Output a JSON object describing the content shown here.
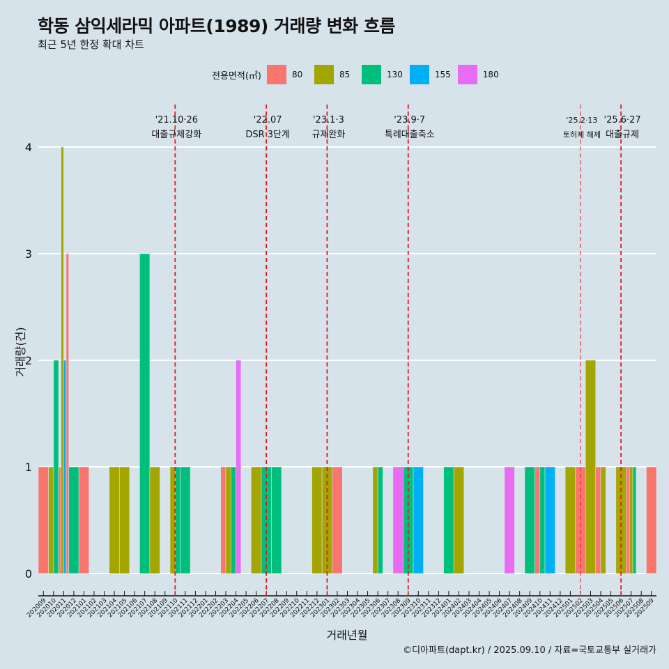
{
  "title": "학동 삼익세라믹 아파트(1989) 거래량 변화 흐름",
  "subtitle": "최근 5년 한정 확대 차트",
  "caption": "©디아파트(dapt.kr) / 2025.09.10 / 자료=국토교통부 실거래가",
  "legend": {
    "title": "전용면적(㎡)",
    "items": [
      {
        "label": "80",
        "color": "#f8766d"
      },
      {
        "label": "85",
        "color": "#a3a500"
      },
      {
        "label": "130",
        "color": "#00bf7d"
      },
      {
        "label": "155",
        "color": "#00b0f6"
      },
      {
        "label": "180",
        "color": "#e76bf3"
      }
    ]
  },
  "chart_data": {
    "type": "bar",
    "xlabel": "거래년월",
    "ylabel": "거래량(건)",
    "ylim": [
      0,
      4
    ],
    "yticks": [
      0,
      1,
      2,
      3,
      4
    ],
    "categories": [
      "202009",
      "202010",
      "202011",
      "202012",
      "202101",
      "202102",
      "202103",
      "202104",
      "202105",
      "202106",
      "202107",
      "202108",
      "202109",
      "202110",
      "202111",
      "202112",
      "202201",
      "202202",
      "202203",
      "202204",
      "202205",
      "202206",
      "202207",
      "202208",
      "202209",
      "202210",
      "202211",
      "202212",
      "202301",
      "202302",
      "202303",
      "202304",
      "202305",
      "202306",
      "202307",
      "202308",
      "202309",
      "202310",
      "202311",
      "202312",
      "202401",
      "202402",
      "202403",
      "202404",
      "202405",
      "202406",
      "202407",
      "202408",
      "202409",
      "202410",
      "202411",
      "202412",
      "202501",
      "202502",
      "202503",
      "202504",
      "202505",
      "202506",
      "202507",
      "202508",
      "202509"
    ],
    "bars": [
      {
        "month": "202009",
        "groups": [
          {
            "area": "80",
            "value": 1
          }
        ]
      },
      {
        "month": "202010",
        "groups": [
          {
            "area": "85",
            "value": 1
          },
          {
            "area": "130",
            "value": 2
          }
        ]
      },
      {
        "month": "202011",
        "groups": [
          {
            "area": "80",
            "value": 1
          },
          {
            "area": "85",
            "value": 4
          },
          {
            "area": "155",
            "value": 2
          },
          {
            "area": "80",
            "value": 3
          }
        ]
      },
      {
        "month": "202012",
        "groups": [
          {
            "area": "130",
            "value": 1
          }
        ]
      },
      {
        "month": "202101",
        "groups": [
          {
            "area": "80",
            "value": 1
          }
        ]
      },
      {
        "month": "202104",
        "groups": [
          {
            "area": "85",
            "value": 1
          }
        ]
      },
      {
        "month": "202105",
        "groups": [
          {
            "area": "85",
            "value": 1
          }
        ]
      },
      {
        "month": "202107",
        "groups": [
          {
            "area": "130",
            "value": 3
          }
        ]
      },
      {
        "month": "202108",
        "groups": [
          {
            "area": "85",
            "value": 1
          }
        ]
      },
      {
        "month": "202110",
        "groups": [
          {
            "area": "85",
            "value": 1
          },
          {
            "area": "130",
            "value": 1
          }
        ]
      },
      {
        "month": "202111",
        "groups": [
          {
            "area": "130",
            "value": 1
          }
        ]
      },
      {
        "month": "202203",
        "groups": [
          {
            "area": "80",
            "value": 1
          },
          {
            "area": "85",
            "value": 1
          }
        ]
      },
      {
        "month": "202204",
        "groups": [
          {
            "area": "130",
            "value": 1
          },
          {
            "area": "180",
            "value": 2
          }
        ]
      },
      {
        "month": "202206",
        "groups": [
          {
            "area": "85",
            "value": 1
          }
        ]
      },
      {
        "month": "202207",
        "groups": [
          {
            "area": "130",
            "value": 1
          }
        ]
      },
      {
        "month": "202208",
        "groups": [
          {
            "area": "130",
            "value": 1
          }
        ]
      },
      {
        "month": "202212",
        "groups": [
          {
            "area": "85",
            "value": 1
          }
        ]
      },
      {
        "month": "202301",
        "groups": [
          {
            "area": "85",
            "value": 1
          }
        ]
      },
      {
        "month": "202302",
        "groups": [
          {
            "area": "80",
            "value": 1
          }
        ]
      },
      {
        "month": "202306",
        "groups": [
          {
            "area": "85",
            "value": 1
          },
          {
            "area": "130",
            "value": 1
          }
        ]
      },
      {
        "month": "202308",
        "groups": [
          {
            "area": "180",
            "value": 1
          }
        ]
      },
      {
        "month": "202309",
        "groups": [
          {
            "area": "130",
            "value": 1
          }
        ]
      },
      {
        "month": "202310",
        "groups": [
          {
            "area": "155",
            "value": 1
          }
        ]
      },
      {
        "month": "202401",
        "groups": [
          {
            "area": "130",
            "value": 1
          }
        ]
      },
      {
        "month": "202402",
        "groups": [
          {
            "area": "85",
            "value": 1
          }
        ]
      },
      {
        "month": "202407",
        "groups": [
          {
            "area": "180",
            "value": 1
          }
        ]
      },
      {
        "month": "202409",
        "groups": [
          {
            "area": "130",
            "value": 1
          }
        ]
      },
      {
        "month": "202410",
        "groups": [
          {
            "area": "80",
            "value": 1
          },
          {
            "area": "130",
            "value": 1
          }
        ]
      },
      {
        "month": "202411",
        "groups": [
          {
            "area": "155",
            "value": 1
          }
        ]
      },
      {
        "month": "202501",
        "groups": [
          {
            "area": "85",
            "value": 1
          }
        ]
      },
      {
        "month": "202502",
        "groups": [
          {
            "area": "80",
            "value": 1
          }
        ]
      },
      {
        "month": "202503",
        "groups": [
          {
            "area": "85",
            "value": 2
          }
        ]
      },
      {
        "month": "202504",
        "groups": [
          {
            "area": "80",
            "value": 1
          },
          {
            "area": "85",
            "value": 1
          }
        ]
      },
      {
        "month": "202506",
        "groups": [
          {
            "area": "85",
            "value": 1
          }
        ]
      },
      {
        "month": "202507",
        "groups": [
          {
            "area": "80",
            "value": 1
          },
          {
            "area": "85",
            "value": 1
          },
          {
            "area": "130",
            "value": 1
          }
        ]
      },
      {
        "month": "202509",
        "groups": [
          {
            "area": "80",
            "value": 1
          }
        ]
      }
    ],
    "annotations": [
      {
        "month": "202110",
        "line1": "'21.10·26",
        "line2": "대출규제강화"
      },
      {
        "month": "202207",
        "line1": "'22.07",
        "line2": "DSR 3단계"
      },
      {
        "month": "202301",
        "line1": "'23.1·3",
        "line2": "규제완화"
      },
      {
        "month": "202309",
        "line1": "'23.9·7",
        "line2": "특례대출축소"
      },
      {
        "month": "202502",
        "line1": "'25.2·13",
        "line2": "토허제 해제"
      },
      {
        "month": "202506",
        "line1": "'25.6·27",
        "line2": "대출규제"
      }
    ]
  }
}
